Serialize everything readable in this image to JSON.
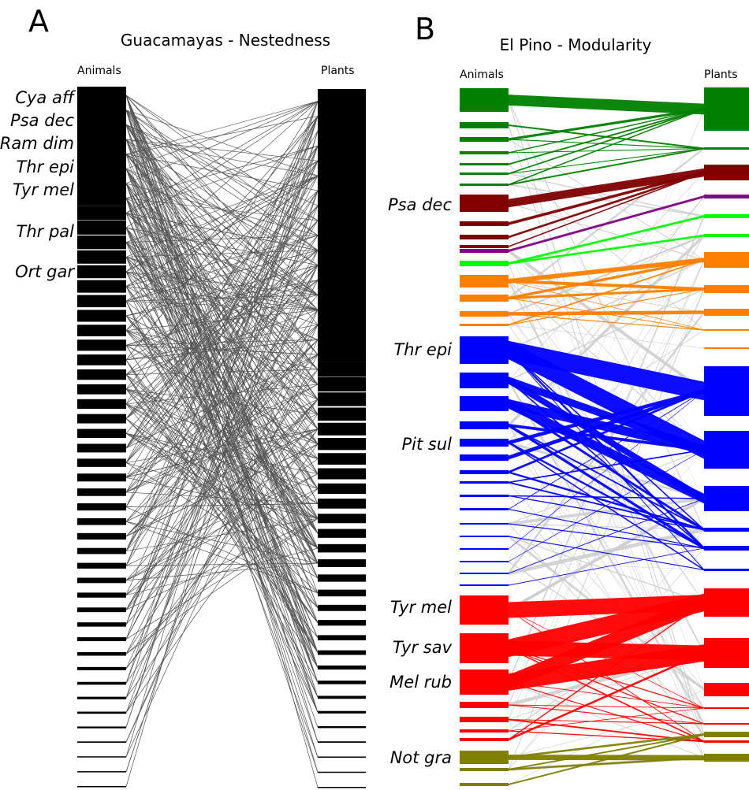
{
  "panel_a": {
    "letter": "A",
    "title": "Guacamayas - Nestedness",
    "animals_label": "Animals",
    "plants_label": "Plants",
    "species_labels": [
      "Cya aff",
      "Psa dec",
      "Ram dim",
      "Thr epi",
      "Tyr mel",
      "Thr pal",
      "Ort gar"
    ]
  },
  "panel_b": {
    "letter": "B",
    "title": "El Pino - Modularity",
    "animals_label": "Animals",
    "plants_label": "Plants",
    "species_labels": [
      "Psa dec",
      "Thr epi",
      "Pit sul",
      "Tyr mel",
      "Tyr sav",
      "Mel rub",
      "Not gra"
    ],
    "module_colors": {
      "green": "#008000",
      "dark_red": "#800000",
      "purple": "#800080",
      "lime": "#00ff00",
      "orange": "#ff8000",
      "blue": "#0000ff",
      "red": "#ff0000",
      "olive": "#808000",
      "between_module_links": "#cccccc"
    }
  },
  "link_color": "#555555"
}
